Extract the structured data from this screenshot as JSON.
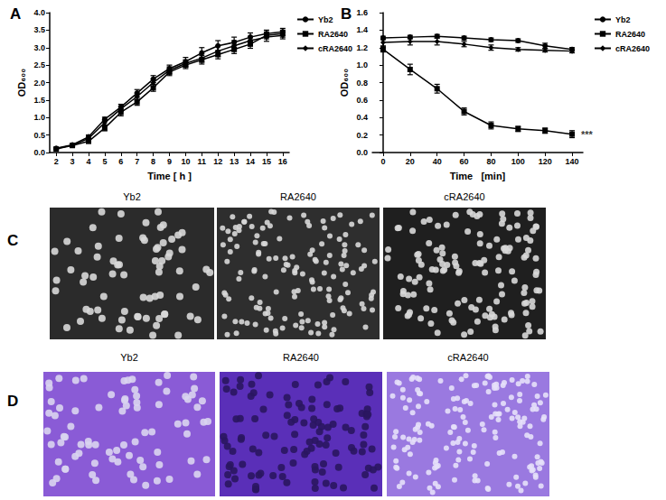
{
  "chart_data": [
    {
      "type": "line",
      "title": "A",
      "x_label": "Time [ h ]",
      "y_label": "OD₆₀₀",
      "x": [
        2,
        3,
        4,
        5,
        6,
        7,
        8,
        9,
        10,
        11,
        12,
        13,
        14,
        15,
        16
      ],
      "xlim": [
        1.6,
        16.4
      ],
      "xticks": [
        2,
        3,
        4,
        5,
        6,
        7,
        8,
        9,
        10,
        11,
        12,
        13,
        14,
        15,
        16
      ],
      "ylim": [
        0,
        4
      ],
      "yticks": [
        {
          "value": 0,
          "label": "0.0"
        },
        {
          "value": 0.5,
          "label": "0.5"
        },
        {
          "value": 1,
          "label": "1.0"
        },
        {
          "value": 1.5,
          "label": "1.5"
        },
        {
          "value": 2,
          "label": "2.0"
        },
        {
          "value": 2.5,
          "label": "2.5"
        },
        {
          "value": 3,
          "label": "3.0"
        },
        {
          "value": 3.5,
          "label": "3.5"
        },
        {
          "value": 4,
          "label": "4.0"
        }
      ],
      "grid": false,
      "legend": "upper right",
      "series": [
        {
          "name": "Yb2",
          "color": "#000000",
          "marker": "circle",
          "values": [
            0.12,
            0.22,
            0.45,
            0.95,
            1.3,
            1.7,
            2.1,
            2.4,
            2.6,
            2.85,
            3.05,
            3.15,
            3.3,
            3.4,
            3.45
          ],
          "errors": [
            0.02,
            0.03,
            0.05,
            0.06,
            0.08,
            0.1,
            0.1,
            0.1,
            0.12,
            0.15,
            0.15,
            0.15,
            0.12,
            0.1,
            0.1
          ]
        },
        {
          "name": "RA2640",
          "color": "#000000",
          "marker": "square",
          "values": [
            0.1,
            0.2,
            0.32,
            0.7,
            1.15,
            1.45,
            1.85,
            2.3,
            2.5,
            2.65,
            2.8,
            2.95,
            3.1,
            3.35,
            3.4
          ],
          "errors": [
            0.02,
            0.03,
            0.05,
            0.08,
            0.1,
            0.1,
            0.1,
            0.1,
            0.1,
            0.12,
            0.12,
            0.12,
            0.12,
            0.1,
            0.1
          ]
        },
        {
          "name": "cRA2640",
          "color": "#000000",
          "marker": "diamond",
          "values": [
            0.11,
            0.21,
            0.4,
            0.85,
            1.25,
            1.6,
            2.0,
            2.35,
            2.55,
            2.7,
            2.9,
            3.05,
            3.2,
            3.3,
            3.35
          ],
          "errors": [
            0.02,
            0.03,
            0.05,
            0.06,
            0.08,
            0.1,
            0.1,
            0.1,
            0.1,
            0.12,
            0.15,
            0.15,
            0.12,
            0.12,
            0.1
          ]
        }
      ]
    },
    {
      "type": "line",
      "title": "B",
      "x_label": "Time   [min]",
      "y_label": "OD₆₀₀",
      "x": [
        0,
        20,
        40,
        60,
        80,
        100,
        120,
        140
      ],
      "xlim": [
        -8,
        148
      ],
      "xticks": [
        0,
        20,
        40,
        60,
        80,
        100,
        120,
        140
      ],
      "ylim": [
        0,
        1.6
      ],
      "yticks": [
        {
          "value": 0,
          "label": "0.0"
        },
        {
          "value": 0.2,
          "label": "0.2"
        },
        {
          "value": 0.4,
          "label": "0.4"
        },
        {
          "value": 0.6,
          "label": "0.6"
        },
        {
          "value": 0.8,
          "label": "0.8"
        },
        {
          "value": 1,
          "label": "1.0"
        },
        {
          "value": 1.2,
          "label": "1.2"
        },
        {
          "value": 1.4,
          "label": "1.4"
        },
        {
          "value": 1.6,
          "label": "1.6"
        }
      ],
      "grid": false,
      "legend": "upper right",
      "annotations": [
        {
          "text": "***",
          "x": 140,
          "y": 0.21
        }
      ],
      "series": [
        {
          "name": "Yb2",
          "color": "#000000",
          "marker": "circle",
          "values": [
            1.31,
            1.32,
            1.33,
            1.31,
            1.29,
            1.28,
            1.22,
            1.18
          ],
          "errors": [
            0.02,
            0.02,
            0.02,
            0.02,
            0.02,
            0.02,
            0.03,
            0.02
          ]
        },
        {
          "name": "RA2640",
          "color": "#000000",
          "marker": "square",
          "values": [
            1.18,
            0.95,
            0.73,
            0.47,
            0.31,
            0.27,
            0.25,
            0.21
          ],
          "errors": [
            0.03,
            0.06,
            0.05,
            0.04,
            0.04,
            0.03,
            0.03,
            0.04
          ]
        },
        {
          "name": "cRA2640",
          "color": "#000000",
          "marker": "diamond",
          "values": [
            1.26,
            1.27,
            1.27,
            1.24,
            1.2,
            1.18,
            1.17,
            1.16
          ],
          "errors": [
            0.04,
            0.04,
            0.04,
            0.03,
            0.03,
            0.02,
            0.02,
            0.02
          ]
        }
      ]
    }
  ],
  "images": [
    {
      "title": "C",
      "captions": [
        "Yb2",
        "RA2640",
        "cRA2640"
      ]
    },
    {
      "title": "D",
      "captions": [
        "Yb2",
        "RA2640",
        "cRA2640"
      ]
    }
  ]
}
